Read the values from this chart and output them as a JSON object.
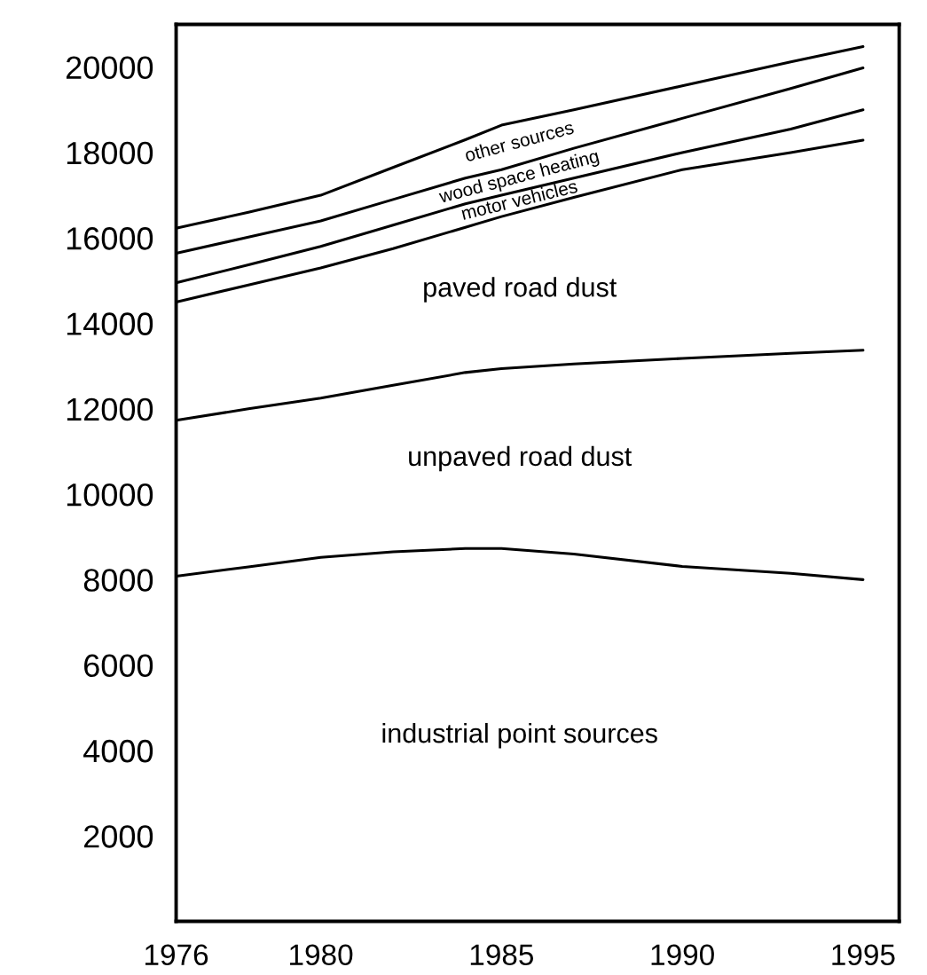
{
  "chart_data": {
    "type": "area",
    "stacked": true,
    "x": [
      1976,
      1978,
      1980,
      1982,
      1984,
      1985,
      1987,
      1990,
      1993,
      1995
    ],
    "series": [
      {
        "name": "industrial point sources",
        "color": "#000000",
        "values": [
          8080,
          8300,
          8520,
          8650,
          8730,
          8730,
          8600,
          8310,
          8150,
          8000
        ]
      },
      {
        "name": "unpaved road dust",
        "color": "#000000",
        "values": [
          3650,
          3700,
          3730,
          3900,
          4120,
          4210,
          4450,
          4870,
          5150,
          5370
        ]
      },
      {
        "name": "paved road dust",
        "color": "#000000",
        "values": [
          2770,
          2900,
          3050,
          3200,
          3400,
          3560,
          3900,
          4420,
          4700,
          4920
        ]
      },
      {
        "name": "motor vehicles",
        "color": "#000000",
        "values": [
          450,
          470,
          500,
          550,
          550,
          500,
          450,
          400,
          550,
          710
        ]
      },
      {
        "name": "wood space heating",
        "color": "#000000",
        "values": [
          690,
          650,
          600,
          600,
          600,
          600,
          700,
          800,
          950,
          980
        ]
      },
      {
        "name": "other sources",
        "color": "#000000",
        "values": [
          590,
          580,
          600,
          750,
          900,
          1040,
          900,
          760,
          620,
          500
        ]
      }
    ],
    "xlim": [
      1976,
      1996
    ],
    "xticks": [
      1976,
      1980,
      1985,
      1990,
      1995
    ],
    "ylim": [
      0,
      21000
    ],
    "yticks": [
      2000,
      4000,
      6000,
      8000,
      10000,
      12000,
      14000,
      16000,
      18000,
      20000
    ],
    "grid": false
  }
}
